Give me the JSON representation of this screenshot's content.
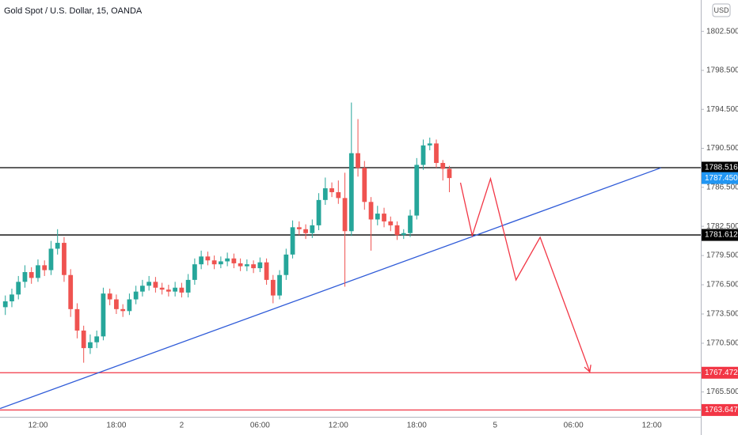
{
  "chart_data": {
    "type": "candlestick",
    "title": "Gold Spot / U.S. Dollar, 15, OANDA",
    "currency": "USD",
    "categories": [
      null,
      null,
      null,
      null,
      null,
      "12:00",
      null,
      null,
      null,
      null,
      null,
      null,
      null,
      null,
      null,
      null,
      null,
      "18:00",
      null,
      null,
      null,
      null,
      null,
      null,
      null,
      null,
      null,
      "2",
      null,
      null,
      null,
      null,
      null,
      null,
      null,
      null,
      null,
      null,
      null,
      "06:00",
      null,
      null,
      null,
      null,
      null,
      null,
      null,
      null,
      null,
      null,
      null,
      "12:00",
      null,
      null,
      null,
      null,
      null,
      null,
      null,
      null,
      null,
      null,
      null,
      "18:00",
      null,
      null,
      null,
      null,
      null,
      null,
      null,
      null,
      null,
      null,
      null,
      "5",
      null,
      null,
      null,
      null,
      null,
      null,
      null,
      null,
      null,
      null,
      null,
      "06:00",
      null,
      null,
      null,
      null,
      null,
      null,
      null,
      null,
      null,
      null,
      null,
      "12:00",
      null,
      null,
      null,
      null,
      null,
      null,
      null
    ],
    "open": [
      1774.2,
      1774.8,
      1775.5,
      1776.8,
      1777.8,
      1777.2,
      1778.5,
      1778.0,
      1780.2,
      1780.8,
      1777.5,
      1774.0,
      1771.8,
      1770.0,
      1770.6,
      1771.2,
      1775.6,
      1775.0,
      1774.0,
      1773.8,
      1775.0,
      1775.8,
      1776.4,
      1776.8,
      1776.2,
      1776.0,
      1775.8,
      1776.2,
      1775.7,
      1777.0,
      1778.6,
      1779.4,
      1779.0,
      1778.6,
      1778.9,
      1779.2,
      1778.7,
      1778.4,
      1778.6,
      1778.2,
      1778.8,
      1777.0,
      1775.4,
      1777.5,
      1779.6,
      1782.4,
      1782.2,
      1781.8,
      1782.6,
      1785.2,
      1786.4,
      1786.0,
      1785.4,
      1782.0,
      1790.0,
      1788.5,
      1785.0,
      1783.2,
      1783.8,
      1783.0,
      1782.6,
      1781.6,
      1781.8,
      1783.6,
      1788.8,
      1790.8,
      1791.0,
      1789.0,
      1788.4,
      null,
      null,
      null,
      null,
      null,
      null,
      null,
      null,
      null,
      null,
      null,
      null,
      null,
      null,
      null,
      null,
      null,
      null,
      null,
      null,
      null,
      null,
      null,
      null,
      null,
      null,
      null,
      null,
      null,
      null,
      null,
      null,
      null,
      null,
      null,
      null,
      null,
      null
    ],
    "high": [
      1775.4,
      1776.1,
      1777.4,
      1778.5,
      1778.3,
      1779.1,
      1779.0,
      1781.0,
      1782.2,
      1781.4,
      1778.1,
      1774.6,
      1772.3,
      1771.4,
      1771.8,
      1776.2,
      1776.1,
      1775.5,
      1774.5,
      1775.6,
      1776.4,
      1777.0,
      1777.4,
      1777.3,
      1776.7,
      1776.5,
      1776.8,
      1776.7,
      1777.6,
      1779.2,
      1780.0,
      1779.9,
      1779.5,
      1779.4,
      1779.8,
      1779.7,
      1779.2,
      1779.1,
      1779.0,
      1779.3,
      1779.2,
      1777.5,
      1778.0,
      1780.2,
      1783.1,
      1783.0,
      1782.7,
      1783.2,
      1785.9,
      1787.5,
      1787.0,
      1787.2,
      1788.0,
      1795.2,
      1793.5,
      1789.2,
      1785.5,
      1784.6,
      1784.4,
      1783.5,
      1783.0,
      1782.2,
      1784.2,
      1789.5,
      1791.4,
      1791.6,
      1791.4,
      1789.3,
      1788.7,
      null,
      null,
      null,
      null,
      null,
      null,
      null,
      null,
      null,
      null,
      null,
      null,
      null,
      null,
      null,
      null,
      null,
      null,
      null,
      null,
      null,
      null,
      null,
      null,
      null,
      null,
      null,
      null,
      null,
      null,
      null,
      null,
      null,
      null,
      null,
      null,
      null,
      null
    ],
    "low": [
      1773.4,
      1774.2,
      1775.0,
      1776.2,
      1776.6,
      1776.8,
      1777.4,
      1777.5,
      1779.6,
      1776.8,
      1773.2,
      1771.0,
      1768.5,
      1769.4,
      1770.0,
      1770.8,
      1774.4,
      1773.5,
      1773.2,
      1773.4,
      1774.5,
      1775.3,
      1775.9,
      1775.7,
      1775.5,
      1775.3,
      1775.3,
      1775.2,
      1775.2,
      1776.5,
      1778.1,
      1778.5,
      1778.1,
      1778.2,
      1778.4,
      1778.2,
      1777.9,
      1777.9,
      1777.7,
      1777.8,
      1776.5,
      1774.6,
      1775.0,
      1777.0,
      1779.2,
      1781.6,
      1781.2,
      1781.3,
      1782.1,
      1784.7,
      1785.5,
      1784.8,
      1776.3,
      1781.5,
      1787.6,
      1784.2,
      1780.0,
      1782.6,
      1782.4,
      1782.0,
      1781.1,
      1781.2,
      1781.4,
      1783.2,
      1788.3,
      1790.3,
      1788.5,
      1787.2,
      1786.0,
      null,
      null,
      null,
      null,
      null,
      null,
      null,
      null,
      null,
      null,
      null,
      null,
      null,
      null,
      null,
      null,
      null,
      null,
      null,
      null,
      null,
      null,
      null,
      null,
      null,
      null,
      null,
      null,
      null,
      null,
      null,
      null,
      null,
      null,
      null,
      null,
      null,
      null
    ],
    "close": [
      1774.8,
      1775.5,
      1776.8,
      1777.8,
      1777.2,
      1778.5,
      1778.0,
      1780.2,
      1780.8,
      1777.5,
      1774.0,
      1771.8,
      1770.0,
      1770.6,
      1771.2,
      1775.6,
      1775.0,
      1774.0,
      1773.8,
      1775.0,
      1775.8,
      1776.4,
      1776.8,
      1776.2,
      1776.0,
      1775.8,
      1776.2,
      1775.7,
      1777.0,
      1778.6,
      1779.4,
      1779.0,
      1778.6,
      1778.9,
      1779.2,
      1778.7,
      1778.4,
      1778.6,
      1778.2,
      1778.8,
      1777.0,
      1775.4,
      1777.5,
      1779.6,
      1782.4,
      1782.2,
      1781.8,
      1782.6,
      1785.2,
      1786.4,
      1786.0,
      1785.4,
      1782.0,
      1790.0,
      1788.5,
      1785.0,
      1783.2,
      1783.8,
      1783.0,
      1782.6,
      1781.6,
      1781.8,
      1783.6,
      1788.8,
      1790.8,
      1791.0,
      1789.0,
      1788.4,
      1787.45,
      null,
      null,
      null,
      null,
      null,
      null,
      null,
      null,
      null,
      null,
      null,
      null,
      null,
      null,
      null,
      null,
      null,
      null,
      null,
      null,
      null,
      null,
      null,
      null,
      null,
      null,
      null,
      null,
      null,
      null,
      null,
      null,
      null,
      null,
      null,
      null,
      null,
      null
    ],
    "up_color": "#26a69a",
    "down_color": "#ef5350",
    "ylim": [
      1762.95,
      1805.72
    ],
    "yticks": [
      {
        "value": 1802.5,
        "label": "1802.500"
      },
      {
        "value": 1798.5,
        "label": "1798.500"
      },
      {
        "value": 1794.5,
        "label": "1794.500"
      },
      {
        "value": 1790.5,
        "label": "1790.500"
      },
      {
        "value": 1786.5,
        "label": "1786.500"
      },
      {
        "value": 1782.5,
        "label": "1782.500"
      },
      {
        "value": 1779.5,
        "label": "1779.500"
      },
      {
        "value": 1776.5,
        "label": "1776.500"
      },
      {
        "value": 1773.5,
        "label": "1773.500"
      },
      {
        "value": 1770.5,
        "label": "1770.500"
      },
      {
        "value": 1765.5,
        "label": "1765.500"
      }
    ],
    "grid": false,
    "levels": [
      {
        "value": 1788.516,
        "color": "#000000"
      },
      {
        "value": 1781.612,
        "color": "#000000"
      },
      {
        "value": 1767.472,
        "color": "#f23645"
      },
      {
        "value": 1763.647,
        "color": "#f23645"
      }
    ],
    "last_price": {
      "value": 1787.45,
      "label": "1787.450",
      "color": "#2196f3"
    },
    "trendline": {
      "x": [
        -0.8,
        100.4
      ],
      "y": [
        1763.8,
        1788.5
      ],
      "color": "#2f5bd8"
    },
    "projection": {
      "x": [
        69.7,
        71.5,
        74.3,
        78.2,
        81.9,
        89.5
      ],
      "y": [
        1786.97,
        1781.54,
        1787.38,
        1776.99,
        1781.37,
        1767.57
      ],
      "color": "#f23645"
    }
  }
}
